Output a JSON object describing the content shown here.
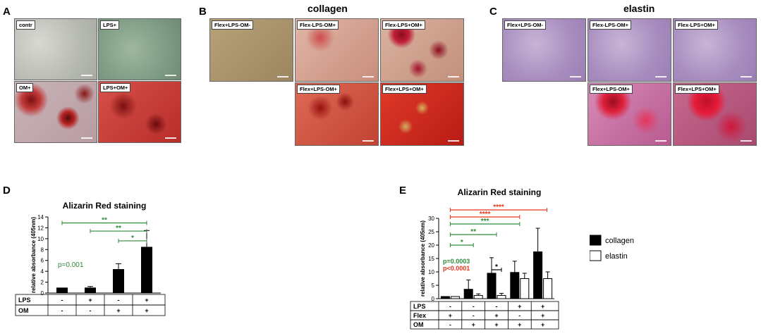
{
  "panels": {
    "A": {
      "letter": "A",
      "tiles": [
        {
          "label": "contr",
          "style": "gray"
        },
        {
          "label": "LPS+",
          "style": "green"
        },
        {
          "label": "OM+",
          "style": "om"
        },
        {
          "label": "LPS+OM+",
          "style": "lpsom"
        }
      ]
    },
    "B": {
      "letter": "B",
      "title": "collagen",
      "tiles": [
        {
          "label": "Flex+LPS-OM-",
          "style": "col-ctrl"
        },
        {
          "label": "Flex-LPS-OM+",
          "style": "col-om"
        },
        {
          "label": "Flex-LPS+OM+",
          "style": "col-om2"
        },
        {
          "label": "Flex+LPS-OM+",
          "style": "col-flexom"
        },
        {
          "label": "Flex+LPS+OM+",
          "style": "col-flexlpsom"
        }
      ]
    },
    "C": {
      "letter": "C",
      "title": "elastin",
      "tiles": [
        {
          "label": "Flex+LPS-OM-",
          "style": "el"
        },
        {
          "label": "Flex-LPS-OM+",
          "style": "el"
        },
        {
          "label": "Flex-LPS+OM+",
          "style": "el"
        },
        {
          "label": "Flex+LPS-OM+",
          "style": "el-om"
        },
        {
          "label": "Flex+LPS+OM+",
          "style": "el-om2"
        }
      ]
    }
  },
  "colors": {
    "green_sig": "#2e8b3a",
    "red_sig": "#e8341c",
    "bar_black": "#000000",
    "bar_white": "#ffffff"
  },
  "chart_data": [
    {
      "panel": "D",
      "type": "bar",
      "title": "Alizarin Red staining",
      "ylabel": "relative absorbance (405nm)",
      "ylim": [
        0,
        14
      ],
      "yticks": [
        0,
        2,
        4,
        6,
        8,
        10,
        12,
        14
      ],
      "values": [
        1.0,
        1.0,
        4.4,
        8.5
      ],
      "errors": [
        0.0,
        0.2,
        1.0,
        3.0
      ],
      "table_rows": [
        {
          "label": "LPS",
          "cells": [
            "-",
            "+",
            "-",
            "+"
          ]
        },
        {
          "label": "OM",
          "cells": [
            "-",
            "-",
            "+",
            "+"
          ]
        }
      ],
      "pvalue_text": "p=0.001",
      "significance": [
        {
          "from": 0,
          "to": 3,
          "stars": "**",
          "color": "green"
        },
        {
          "from": 1,
          "to": 3,
          "stars": "**",
          "color": "green"
        },
        {
          "from": 2,
          "to": 3,
          "stars": "*",
          "color": "green"
        }
      ]
    },
    {
      "panel": "E",
      "type": "bar",
      "title": "Alizarin Red staining",
      "ylabel": "relative absorbance (405nm)",
      "ylim": [
        0,
        30
      ],
      "yticks": [
        0,
        5,
        10,
        15,
        20,
        25,
        30
      ],
      "series": [
        {
          "name": "collagen",
          "values": [
            0.8,
            3.5,
            9.5,
            9.8,
            17.5
          ],
          "errors": [
            0.0,
            3.5,
            5.8,
            4.2,
            8.8
          ]
        },
        {
          "name": "elastin",
          "values": [
            0.8,
            1.2,
            1.2,
            7.5,
            7.5
          ],
          "errors": [
            0.0,
            0.6,
            0.8,
            2.0,
            2.5
          ]
        }
      ],
      "table_rows": [
        {
          "label": "LPS",
          "cells": [
            "-",
            "-",
            "-",
            "+",
            "+"
          ]
        },
        {
          "label": "Flex",
          "cells": [
            "+",
            "-",
            "+",
            "-",
            "+"
          ]
        },
        {
          "label": "OM",
          "cells": [
            "-",
            "+",
            "+",
            "+",
            "+"
          ]
        }
      ],
      "pvalue_texts": [
        {
          "text": "p=0.0003",
          "color": "green"
        },
        {
          "text": "p<0.0001",
          "color": "red"
        }
      ],
      "significance": [
        {
          "from": 0,
          "to": 4,
          "stars": "****",
          "color": "red"
        },
        {
          "from": 0,
          "to": 3,
          "stars": "****",
          "color": "red"
        },
        {
          "from": 0,
          "to": 3,
          "stars": "***",
          "color": "green"
        },
        {
          "from": 0,
          "to": 2,
          "stars": "**",
          "color": "green"
        },
        {
          "from": 0,
          "to": 1,
          "stars": "*",
          "color": "green"
        },
        {
          "from": 2,
          "to": 2,
          "stars": "*",
          "color": "black",
          "within_group": true
        }
      ]
    }
  ]
}
